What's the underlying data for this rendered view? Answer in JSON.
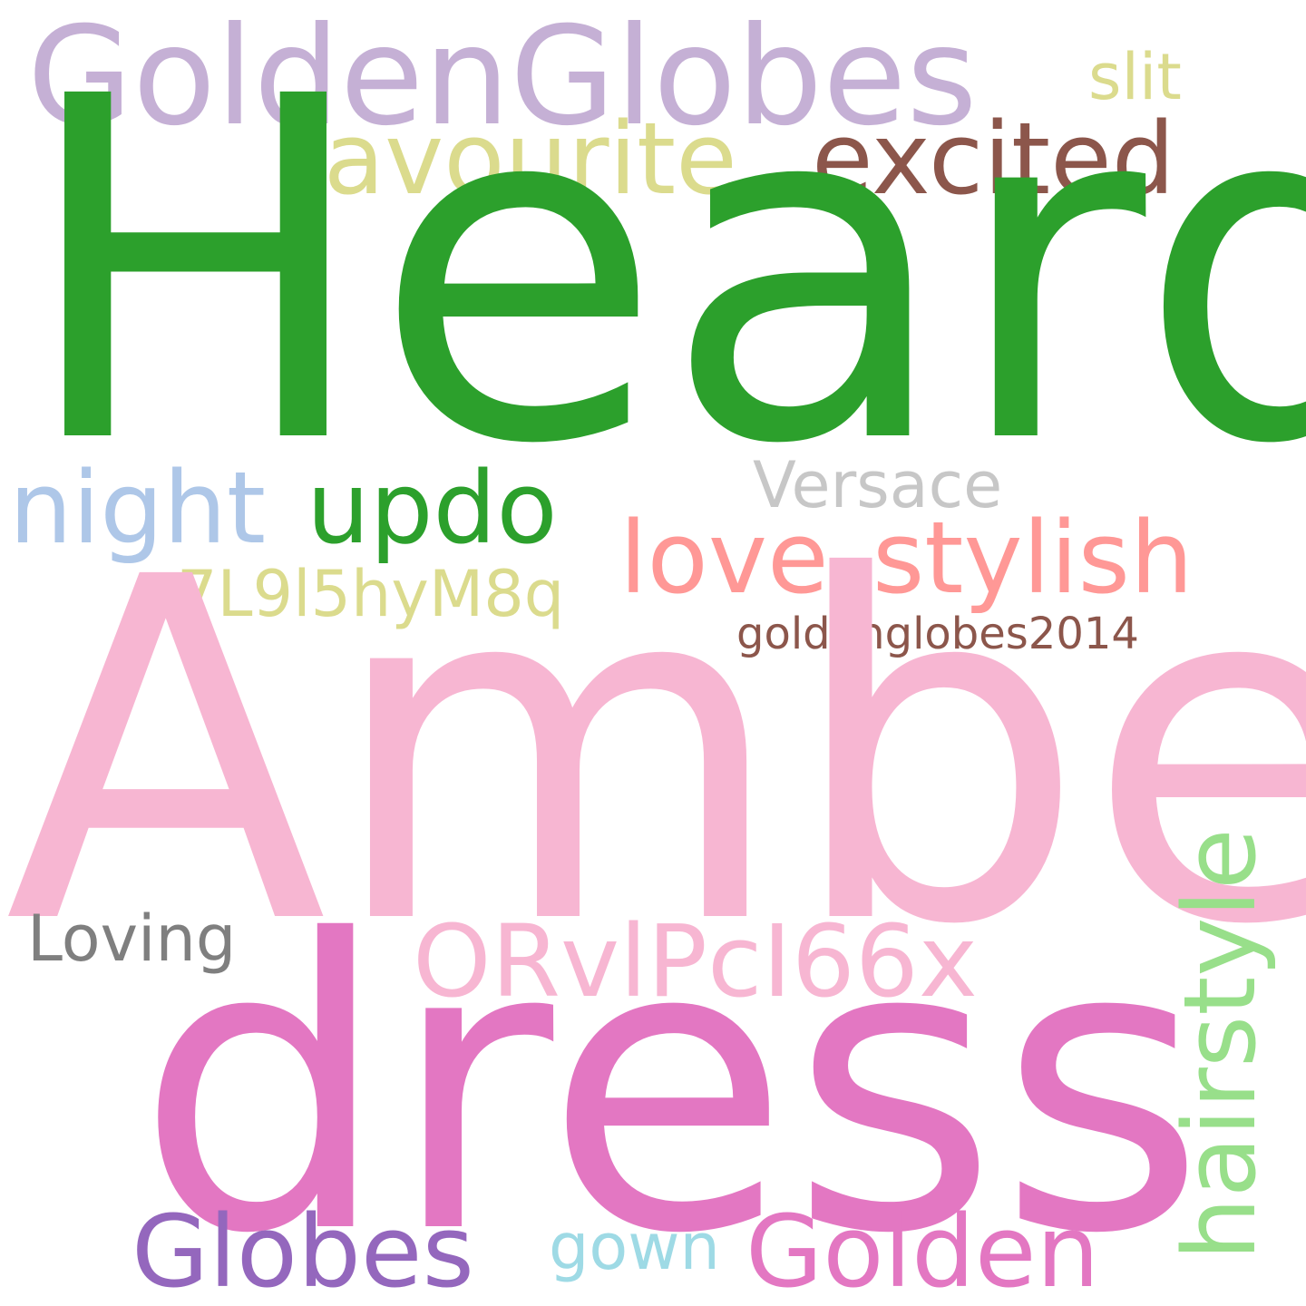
{
  "words": [
    {
      "key": "goldenglobes",
      "text": "GoldenGlobes",
      "color": "#c5b0d5"
    },
    {
      "key": "slit",
      "text": "slit",
      "color": "#dbdb8d"
    },
    {
      "key": "favourite",
      "text": "favourite",
      "color": "#dbdb8d"
    },
    {
      "key": "excited",
      "text": "excited",
      "color": "#8c564b"
    },
    {
      "key": "heard",
      "text": "Heard",
      "color": "#2ca02c"
    },
    {
      "key": "versace",
      "text": "Versace",
      "color": "#c7c7c7"
    },
    {
      "key": "night",
      "text": "night",
      "color": "#aec7e8"
    },
    {
      "key": "updo",
      "text": "updo",
      "color": "#2ca02c"
    },
    {
      "key": "love",
      "text": "love",
      "color": "#ff9896"
    },
    {
      "key": "stylish",
      "text": "stylish",
      "color": "#ff9896"
    },
    {
      "key": "7l",
      "text": "7L9l5hyM8q",
      "color": "#dbdb8d"
    },
    {
      "key": "gg2014",
      "text": "goldenglobes2014",
      "color": "#8c564b"
    },
    {
      "key": "amber",
      "text": "Amber",
      "color": "#f7b6d2"
    },
    {
      "key": "hairstyle",
      "text": "hairstyle",
      "color": "#98df8a"
    },
    {
      "key": "loving",
      "text": "Loving",
      "color": "#7f7f7f"
    },
    {
      "key": "orvl",
      "text": "ORvlPcI66x",
      "color": "#f7b6d2"
    },
    {
      "key": "dress",
      "text": "dress",
      "color": "#e377c2"
    },
    {
      "key": "globes",
      "text": "Globes",
      "color": "#9467bd"
    },
    {
      "key": "gown",
      "text": "gown",
      "color": "#9edae5"
    },
    {
      "key": "golden",
      "text": "Golden",
      "color": "#e377c2"
    }
  ]
}
